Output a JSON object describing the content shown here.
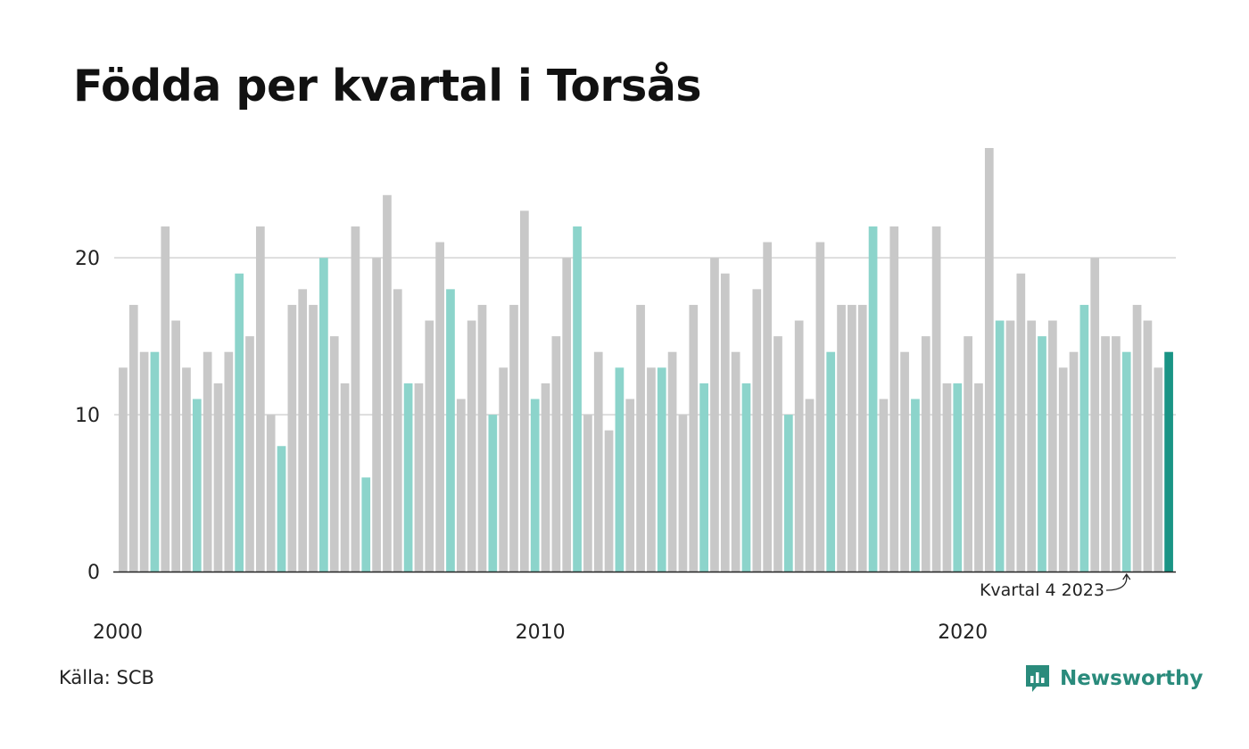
{
  "title": "Födda per kvartal i Torsås",
  "source": "Källa: SCB",
  "brand": "Newsworthy",
  "annotation": "Kvartal 4 2023",
  "colors": {
    "bar_default": "#c8c8c8",
    "bar_q4": "#8cd4cb",
    "bar_latest": "#1a9485",
    "grid": "#dddddd",
    "axis": "#222222",
    "brand": "#2a8b7c"
  },
  "chart_data": {
    "type": "bar",
    "title": "Födda per kvartal i Torsås",
    "xlabel": "",
    "ylabel": "",
    "ylim": [
      0,
      27
    ],
    "yticks": [
      0,
      10,
      20
    ],
    "xtick_labels": [
      "2000",
      "2010",
      "2020"
    ],
    "start_year": 2000,
    "start_quarter": 1,
    "grid": true,
    "highlight_rule": "quarter 4 of each year; last bar highlighted darker",
    "values": [
      13,
      17,
      14,
      14,
      22,
      16,
      13,
      11,
      14,
      12,
      14,
      19,
      15,
      22,
      10,
      8,
      17,
      18,
      17,
      20,
      15,
      12,
      22,
      6,
      20,
      24,
      18,
      12,
      12,
      16,
      21,
      18,
      11,
      16,
      17,
      10,
      13,
      17,
      23,
      11,
      12,
      15,
      20,
      22,
      10,
      14,
      9,
      13,
      11,
      17,
      13,
      13,
      14,
      10,
      17,
      12,
      20,
      19,
      14,
      12,
      18,
      21,
      15,
      10,
      16,
      11,
      21,
      14,
      17,
      17,
      17,
      22,
      11,
      22,
      14,
      11,
      15,
      22,
      12,
      12,
      15,
      12,
      27,
      16,
      16,
      19,
      16,
      15,
      16,
      13,
      14,
      17,
      20,
      15,
      15,
      14,
      17,
      16,
      13,
      14
    ],
    "annotation": {
      "label": "Kvartal 4 2023",
      "year": 2023,
      "quarter": 4
    }
  }
}
